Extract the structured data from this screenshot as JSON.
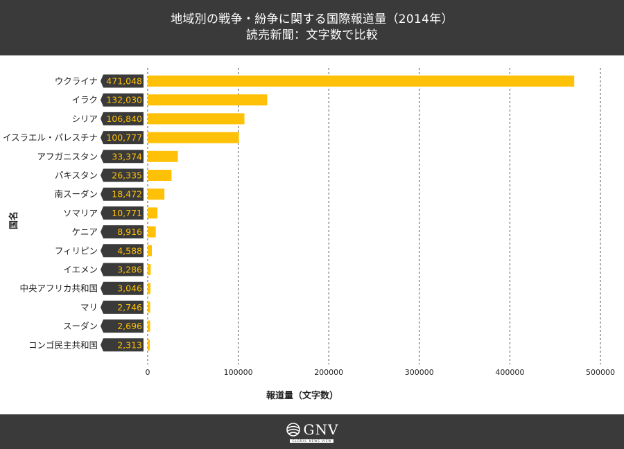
{
  "header": {
    "title_line1": "地域別の戦争・紛争に関する国際報道量（2014年）",
    "title_line2": "読売新聞：文字数で比較"
  },
  "footer": {
    "logo_text": "GNV",
    "logo_subtext": "GLOBAL NEWS VIEW"
  },
  "colors": {
    "bar": "#ffc107",
    "label_box": "#3a3a3a",
    "label_text": "#ffc107",
    "header_bg": "#3a3a3a"
  },
  "chart_data": {
    "type": "bar",
    "orientation": "horizontal",
    "categories": [
      "ウクライナ",
      "イラク",
      "シリア",
      "イスラエル・パレスチナ",
      "アフガニスタン",
      "パキスタン",
      "南スーダン",
      "ソマリア",
      "ケニア",
      "フィリピン",
      "イエメン",
      "中央アフリカ共和国",
      "マリ",
      "スーダン",
      "コンゴ民主共和国"
    ],
    "values": [
      471048,
      132030,
      106840,
      100777,
      33374,
      26335,
      18472,
      10771,
      8916,
      4588,
      3286,
      3046,
      2746,
      2696,
      2313
    ],
    "value_labels": [
      "471,048",
      "132,030",
      "106,840",
      "100,777",
      "33,374",
      "26,335",
      "18,472",
      "10,771",
      "8,916",
      "4,588",
      "3,286",
      "3,046",
      "2,746",
      "2,696",
      "2,313"
    ],
    "xlabel": "報道量（文字数）",
    "ylabel": "国名",
    "xlim": [
      0,
      500000
    ],
    "xticks": [
      0,
      100000,
      200000,
      300000,
      400000,
      500000
    ],
    "xtick_labels": [
      "0",
      "100000",
      "200000",
      "300000",
      "400000",
      "500000"
    ],
    "grid": "vertical-dashed"
  }
}
